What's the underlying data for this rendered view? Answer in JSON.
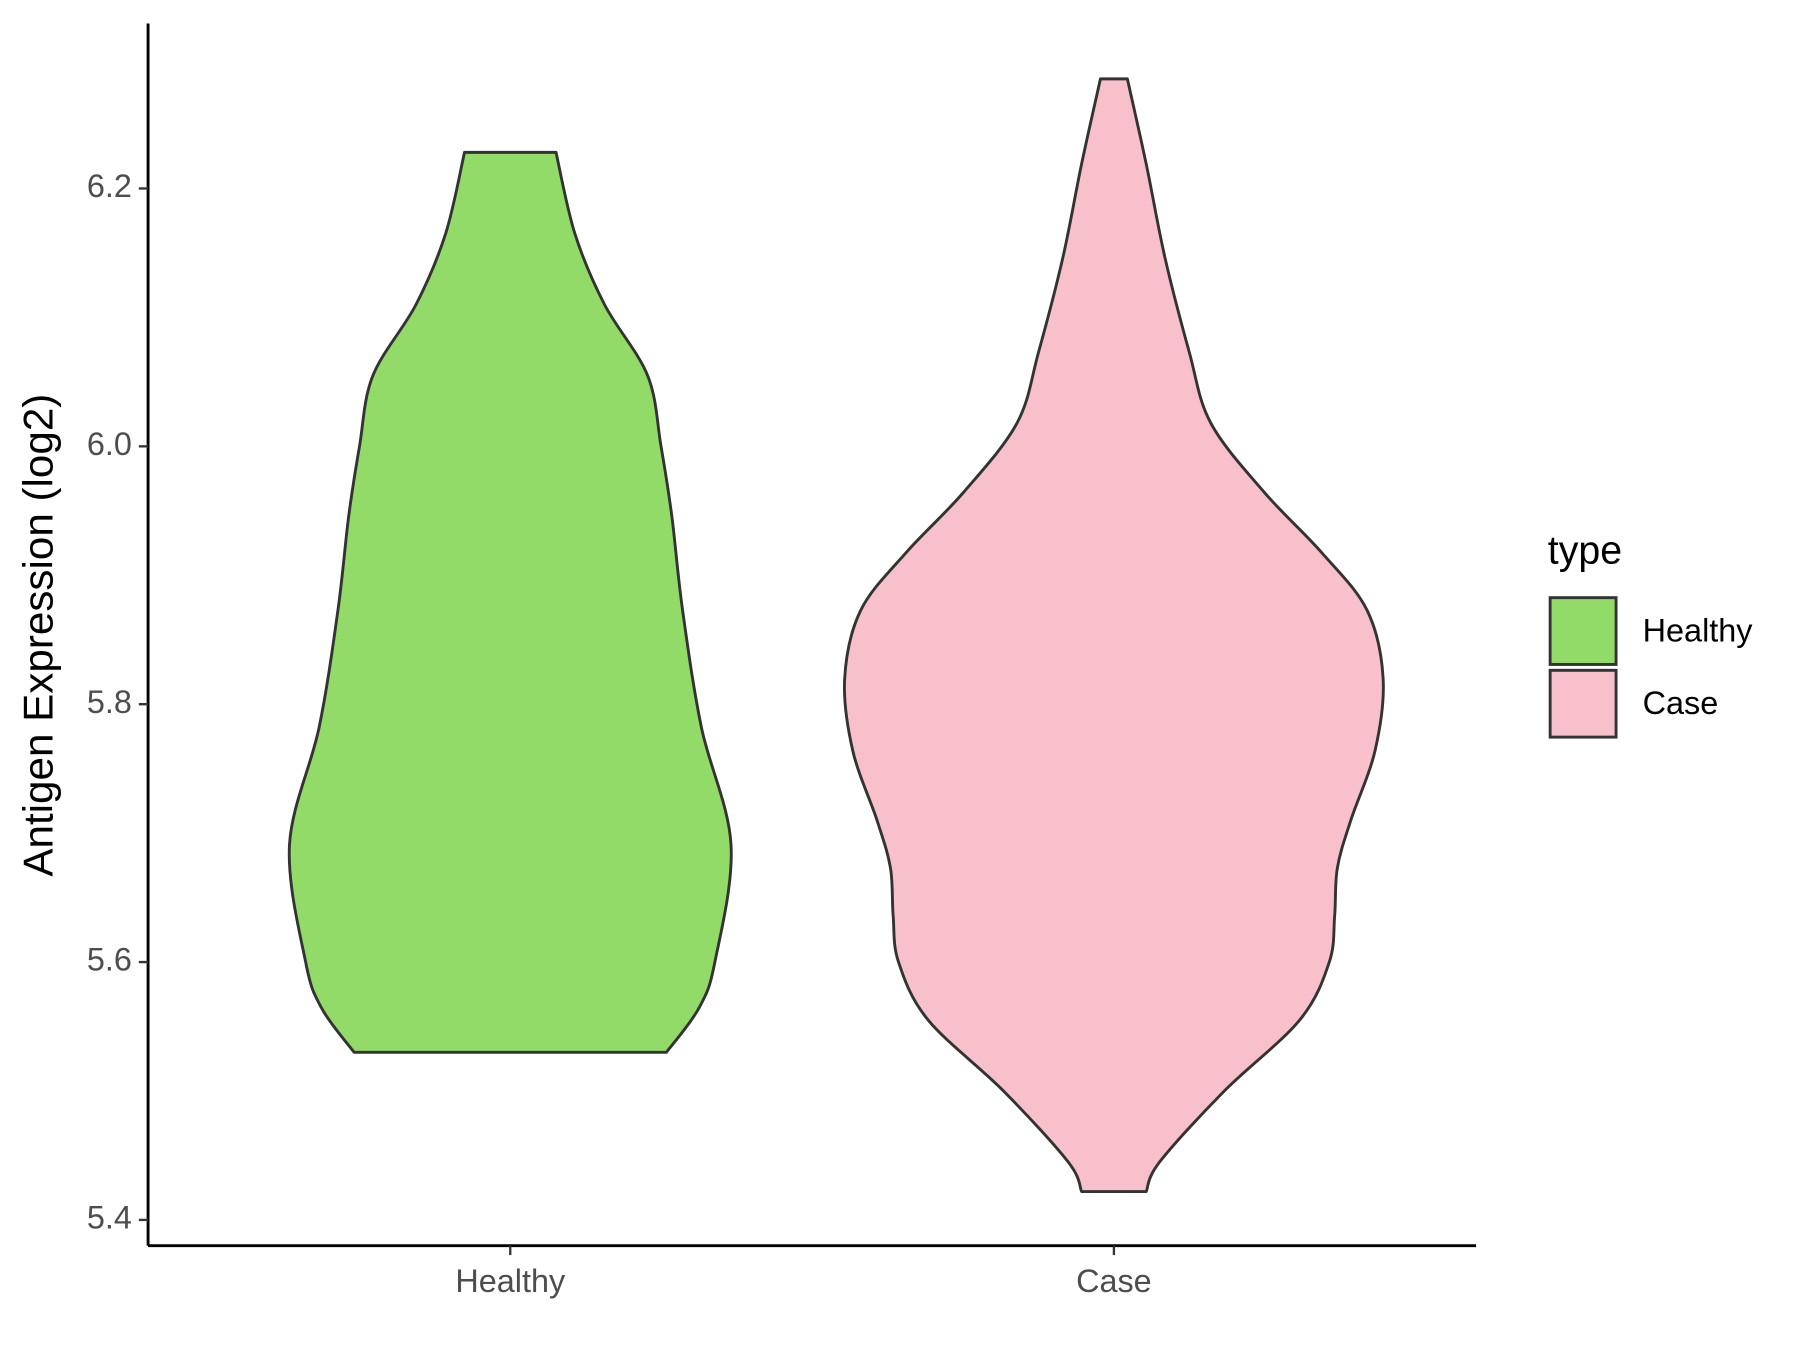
{
  "chart_data": {
    "type": "violin",
    "y_label": "Antigen Expression (log2)",
    "categories": [
      "Healthy",
      "Case"
    ],
    "legend_title": "type",
    "legend_position": "right",
    "ylim": [
      5.38,
      6.328
    ],
    "yticks": [
      5.4,
      5.6,
      5.8,
      {
        "value": 6,
        "label": "6.0"
      },
      6.2
    ],
    "series": [
      {
        "name": "Healthy",
        "color": "#93db69",
        "y": [
          5.53,
          5.564,
          5.6,
          5.691,
          5.782,
          5.873,
          5.946,
          6.0,
          6.055,
          6.11,
          6.165,
          6.228
        ],
        "density": [
          0.58,
          0.7,
          0.76,
          0.82,
          0.71,
          0.64,
          0.6,
          0.56,
          0.51,
          0.35,
          0.24,
          0.17
        ]
      },
      {
        "name": "Case",
        "color": "#f8c0cb",
        "y": [
          5.422,
          5.445,
          5.5,
          5.555,
          5.6,
          5.636,
          5.673,
          5.71,
          5.764,
          5.82,
          5.873,
          5.918,
          5.964,
          6.018,
          6.073,
          6.146,
          6.219,
          6.285
        ],
        "density": [
          0.12,
          0.17,
          0.41,
          0.69,
          0.8,
          0.82,
          0.83,
          0.88,
          0.97,
          1.0,
          0.94,
          0.77,
          0.56,
          0.36,
          0.28,
          0.19,
          0.12,
          0.05
        ]
      }
    ]
  }
}
